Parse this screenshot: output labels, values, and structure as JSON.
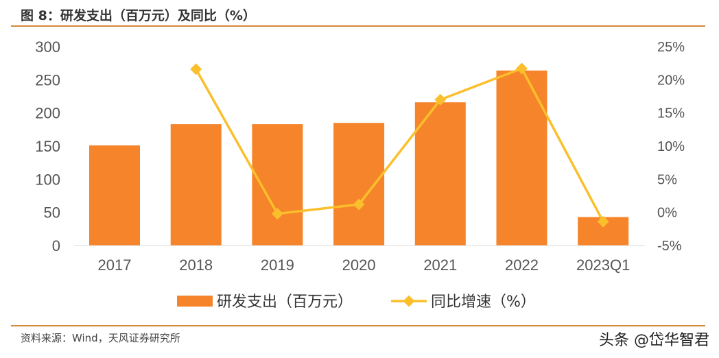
{
  "title": "图 8：研发支出（百万元）及同比（%）",
  "source": "资料来源：Wind，天风证券研究所",
  "watermark": "头条 @岱华智君",
  "chart_data": {
    "type": "bar+line",
    "categories": [
      "2017",
      "2018",
      "2019",
      "2020",
      "2021",
      "2022",
      "2023Q1"
    ],
    "series": [
      {
        "name": "研发支出（百万元）",
        "type": "bar",
        "axis": "left",
        "color": "#f5842a",
        "values": [
          151,
          183,
          183,
          185,
          216,
          264,
          43
        ]
      },
      {
        "name": "同比增速（%）",
        "type": "line",
        "axis": "right",
        "color": "#fbbf2c",
        "values": [
          null,
          21.6,
          -0.2,
          1.2,
          17.0,
          21.7,
          -1.4
        ]
      }
    ],
    "left_axis": {
      "ylim": [
        0,
        300
      ],
      "ticks": [
        "0",
        "50",
        "100",
        "150",
        "200",
        "250",
        "300"
      ]
    },
    "right_axis": {
      "ylim": [
        -5,
        25
      ],
      "ticks": [
        "-5%",
        "0%",
        "5%",
        "10%",
        "15%",
        "20%",
        "25%"
      ]
    },
    "legend": "bottom",
    "grid": false
  }
}
